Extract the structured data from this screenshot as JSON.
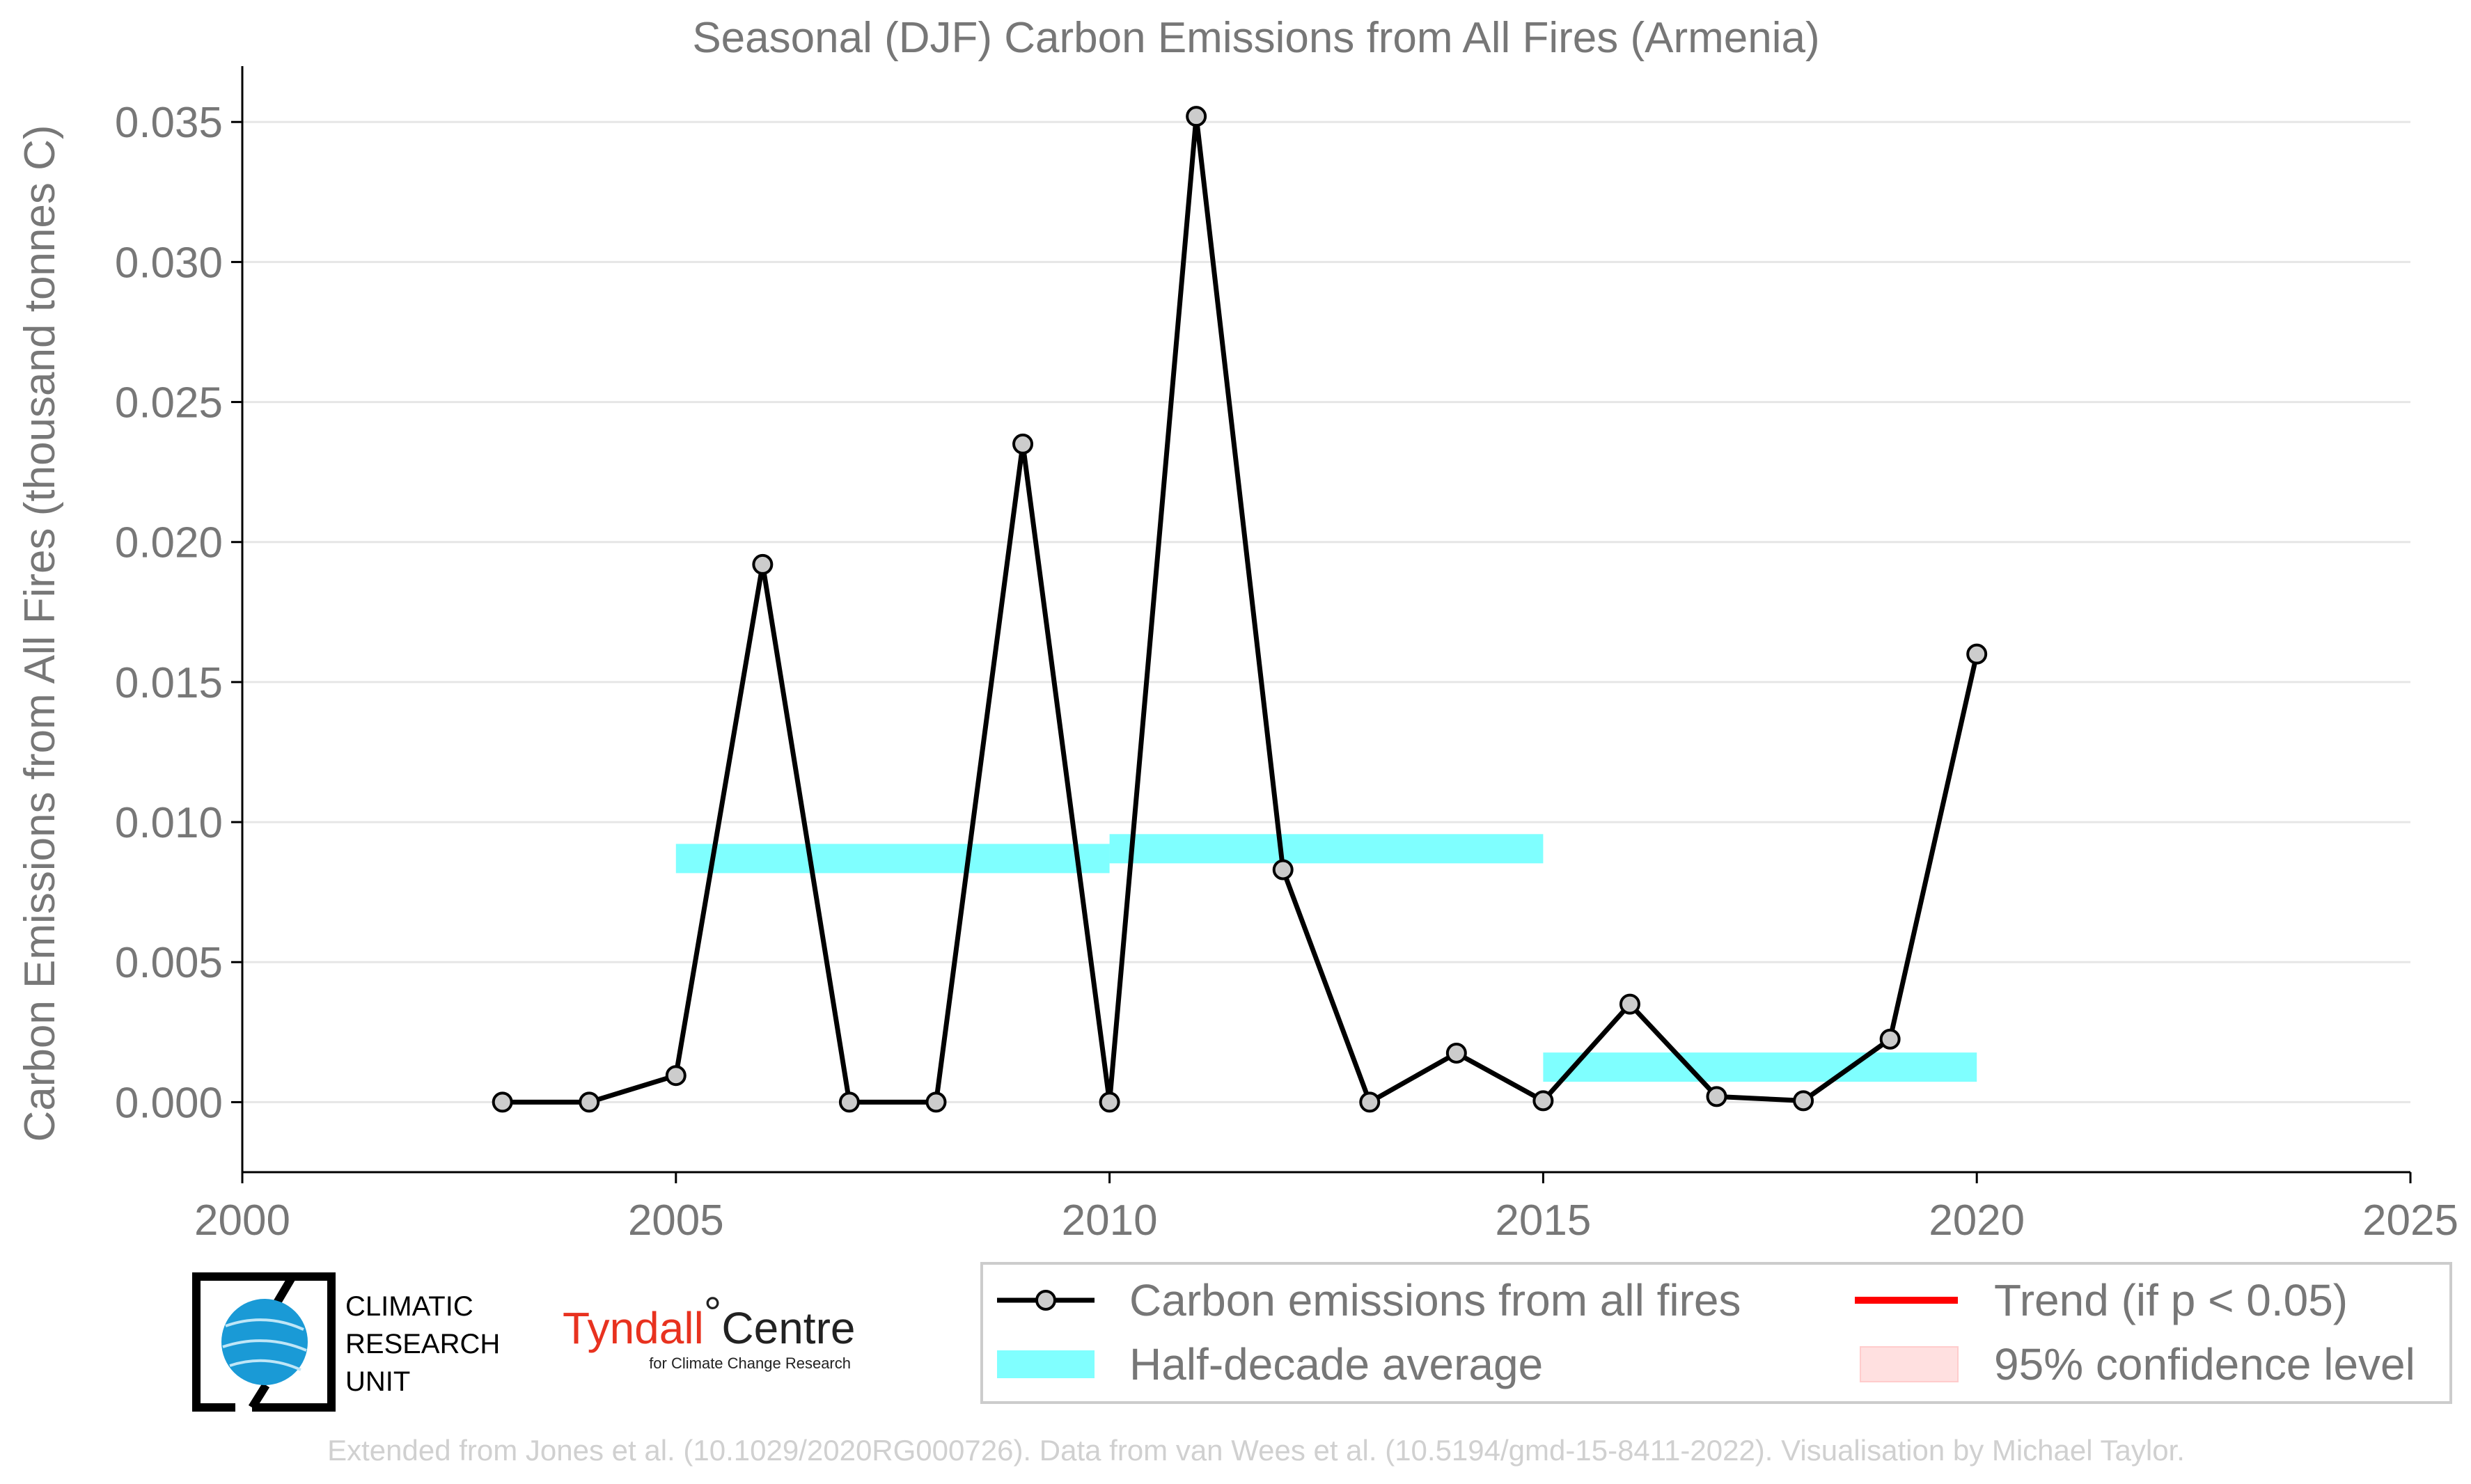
{
  "chart_data": {
    "type": "line",
    "title": "Seasonal (DJF) Carbon Emissions from All Fires (Armenia)",
    "xlabel": "",
    "ylabel": "Carbon Emissions from All Fires (thousand tonnes C)",
    "xlim": [
      2000,
      2025
    ],
    "ylim": [
      -0.0025,
      0.036
    ],
    "x_ticks": [
      "2000",
      "2005",
      "2010",
      "2015",
      "2020",
      "2025"
    ],
    "y_ticks": [
      "0.000",
      "0.005",
      "0.010",
      "0.015",
      "0.020",
      "0.025",
      "0.030",
      "0.035"
    ],
    "grid": "horizontal",
    "series": [
      {
        "name": "Carbon emissions from all fires",
        "color": "#000000",
        "marker_color": "#cccccc",
        "x": [
          2003,
          2004,
          2005,
          2006,
          2007,
          2008,
          2009,
          2010,
          2011,
          2012,
          2013,
          2014,
          2015,
          2016,
          2017,
          2018,
          2019,
          2020
        ],
        "y": [
          0.0,
          0.0,
          0.00095,
          0.0192,
          0.0,
          0.0,
          0.0235,
          0.0,
          0.0352,
          0.0083,
          0.0,
          0.00175,
          5e-05,
          0.0035,
          0.0002,
          5e-05,
          0.00225,
          0.016
        ]
      }
    ],
    "half_decade_average": {
      "name": "Half-decade average",
      "color": "#00ffff",
      "segments": [
        {
          "x_start": 2005,
          "x_end": 2010,
          "value": 0.0087
        },
        {
          "x_start": 2010,
          "x_end": 2015,
          "value": 0.00905
        },
        {
          "x_start": 2015,
          "x_end": 2020,
          "value": 0.00125
        }
      ]
    },
    "legend": [
      {
        "label": "Carbon emissions from all fires",
        "kind": "line-marker",
        "color": "#000000"
      },
      {
        "label": "Trend (if p < 0.05)",
        "kind": "line",
        "color": "#ff0000"
      },
      {
        "label": "Half-decade average",
        "kind": "patch",
        "color": "#80ffff"
      },
      {
        "label": "95% confidence level",
        "kind": "patch",
        "color": "#ffe0e0"
      }
    ],
    "legend_placement": "bottom-right, below plot"
  },
  "logos": {
    "cru": {
      "lines": [
        "CLIMATIC",
        "RESEARCH",
        "UNIT"
      ]
    },
    "tyndall": {
      "name": "Tyndall",
      "centre": "Centre",
      "degree": "°",
      "subtitle": "for Climate Change Research"
    }
  },
  "footer": "Extended from Jones et al. (10.1029/2020RG000726). Data from van Wees et al. (10.5194/gmd-15-8411-2022). Visualisation by Michael Taylor."
}
